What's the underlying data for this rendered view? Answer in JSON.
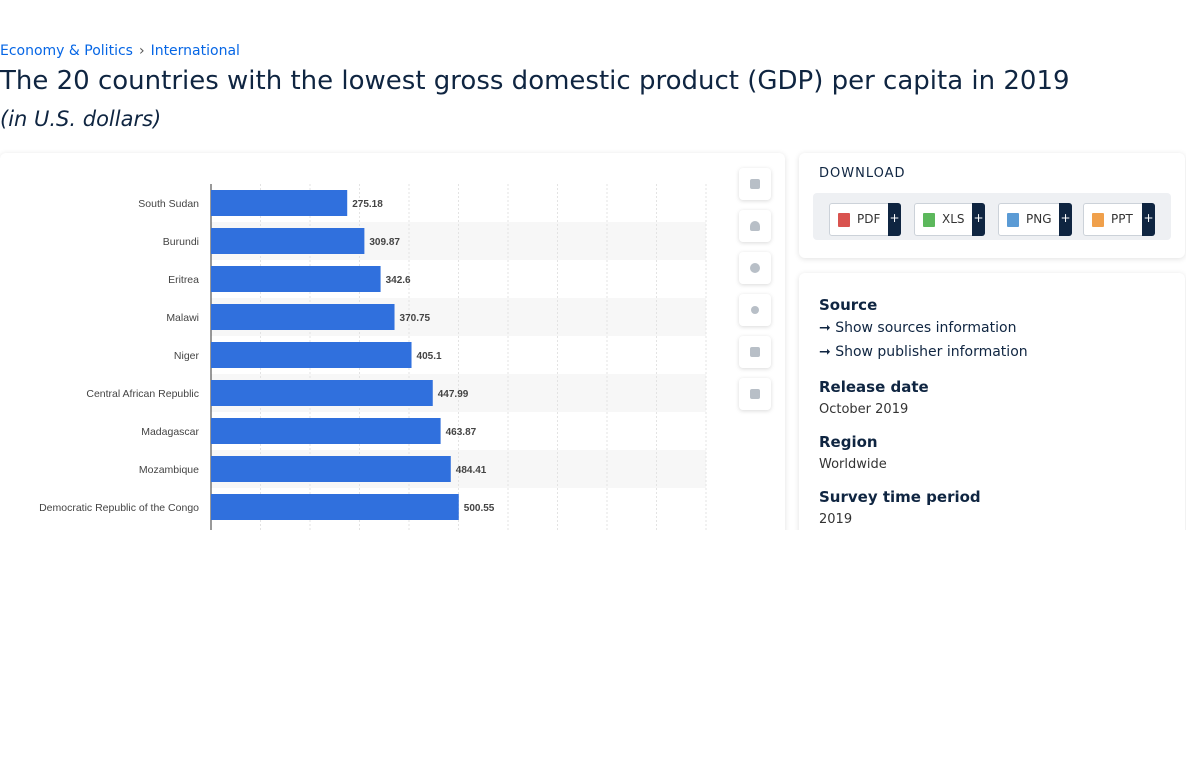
{
  "breadcrumb": [
    "Economy & Politics",
    "International"
  ],
  "breadcrumb_separator": "›",
  "title": "The 20 countries with the lowest gross domestic product (GDP) per capita in 2019",
  "subtitle": "(in U.S. dollars)",
  "chart_data": {
    "type": "bar",
    "orientation": "horizontal",
    "categories": [
      "South Sudan",
      "Burundi",
      "Eritrea",
      "Malawi",
      "Niger",
      "Central African Republic",
      "Madagascar",
      "Mozambique",
      "Democratic Republic of the Congo"
    ],
    "values": [
      275.18,
      309.87,
      342.6,
      370.75,
      405.1,
      447.99,
      463.87,
      484.41,
      500.55
    ],
    "color": "#3070dd",
    "xlim": [
      0,
      1000
    ],
    "xticks": [
      0,
      100,
      200,
      300,
      400,
      500,
      600,
      700,
      800,
      900,
      1000
    ],
    "grid": true
  },
  "download": {
    "title": "DOWNLOAD",
    "formats": [
      "PDF",
      "XLS",
      "PNG",
      "PPT"
    ],
    "add_symbol": "+"
  },
  "details": {
    "source": {
      "label": "Source",
      "links": [
        "Show sources information",
        "Show publisher information"
      ]
    },
    "release_date": {
      "label": "Release date",
      "value": "October 2019"
    },
    "region": {
      "label": "Region",
      "value": "Worldwide"
    },
    "survey_period": {
      "label": "Survey time period",
      "value": "2019"
    }
  }
}
